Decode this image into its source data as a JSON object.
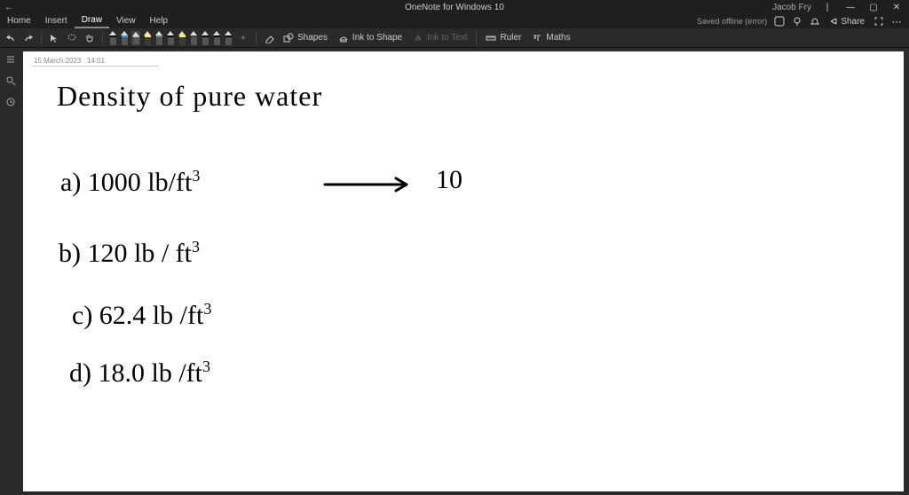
{
  "app": {
    "title": "OneNote for Windows 10",
    "user": "Jacob Fry"
  },
  "menu": {
    "tabs": [
      "Home",
      "Insert",
      "Draw",
      "View",
      "Help"
    ],
    "active_index": 2,
    "status": "Saved offline (error)",
    "share_label": "Share"
  },
  "toolbar": {
    "pens": [
      {
        "band_color": "#000000",
        "selected": false,
        "type": "pen"
      },
      {
        "band_color": "#00b0f0",
        "selected": false,
        "type": "pen"
      },
      {
        "band_color": "#c0c0c0",
        "selected": true,
        "type": "pen"
      },
      {
        "band_color": "#ffff00",
        "selected": false,
        "type": "hl"
      },
      {
        "band_color": "#808080",
        "selected": false,
        "type": "pen"
      },
      {
        "band_color": "#000000",
        "selected": false,
        "type": "pen"
      },
      {
        "band_color": "#ffff00",
        "selected": false,
        "type": "hl"
      },
      {
        "band_color": "#404040",
        "selected": false,
        "type": "pen"
      },
      {
        "band_color": "#000000",
        "selected": false,
        "type": "pen"
      },
      {
        "band_color": "#000000",
        "selected": false,
        "type": "pen"
      },
      {
        "band_color": "#000000",
        "selected": false,
        "type": "pen"
      }
    ],
    "shapes_label": "Shapes",
    "ink_to_shape_label": "Ink to Shape",
    "ink_to_text_label": "Ink to Text",
    "ruler_label": "Ruler",
    "maths_label": "Maths"
  },
  "page": {
    "date": "15 March 2023",
    "time": "14:01",
    "ink_color": "#000000",
    "background_color": "#ffffff",
    "lines": {
      "title": "Density  of   pure   water",
      "a": "a)  1000 lb/ft",
      "a_exp": "3",
      "a_ans": "10",
      "b": "b)  120 lb / ft",
      "b_exp": "3",
      "c": "c)   62.4  lb /ft",
      "c_exp": "3",
      "d": "d)  18.0 lb /ft",
      "d_exp": "3"
    },
    "title_font_size": 32,
    "line_font_size": 30,
    "exp_font_size": 18
  },
  "colors": {
    "chrome_bg": "#1f1f1f",
    "toolbar_bg": "#2a2a2a",
    "text_muted": "#cccccc"
  }
}
